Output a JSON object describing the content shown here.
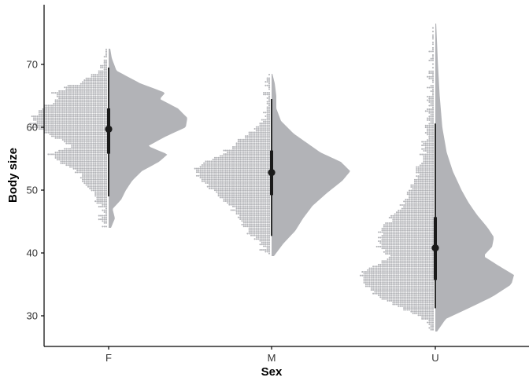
{
  "chart_data": {
    "type": "raincloud",
    "xlabel": "Sex",
    "ylabel": "Body size",
    "categories": [
      "F",
      "M",
      "U"
    ],
    "ylim": [
      27,
      77
    ],
    "y_ticks": [
      30,
      40,
      50,
      60,
      70
    ],
    "grid": false,
    "legend": "none",
    "colors": {
      "cloud": "#b2b3b7",
      "dots": "#b2b3b7",
      "interval": "#1a1a1a",
      "axis": "#000000"
    },
    "groups": [
      {
        "category": "F",
        "min": 44,
        "max": 72.5,
        "q05": 49,
        "q25": 55.8,
        "median": 59.7,
        "q75": 63,
        "q95": 69.5,
        "density": [
          [
            44,
            0.03
          ],
          [
            45.5,
            0.08
          ],
          [
            47,
            0.05
          ],
          [
            48.5,
            0.16
          ],
          [
            50,
            0.22
          ],
          [
            51.5,
            0.3
          ],
          [
            53,
            0.42
          ],
          [
            54.5,
            0.64
          ],
          [
            55.7,
            0.75
          ],
          [
            57,
            0.5
          ],
          [
            58.5,
            0.72
          ],
          [
            60,
            0.98
          ],
          [
            61.5,
            1.0
          ],
          [
            63,
            0.88
          ],
          [
            64.5,
            0.65
          ],
          [
            65.5,
            0.72
          ],
          [
            67,
            0.4
          ],
          [
            69,
            0.1
          ],
          [
            71,
            0.04
          ],
          [
            72.5,
            0.02
          ]
        ]
      },
      {
        "category": "M",
        "min": 39.5,
        "max": 68.5,
        "q05": 42.7,
        "q25": 49.2,
        "median": 52.8,
        "q75": 56.3,
        "q95": 64.5,
        "density": [
          [
            39.5,
            0.03
          ],
          [
            41.5,
            0.15
          ],
          [
            43.5,
            0.3
          ],
          [
            45.5,
            0.4
          ],
          [
            47.5,
            0.52
          ],
          [
            49.5,
            0.7
          ],
          [
            51.5,
            0.9
          ],
          [
            53,
            1.0
          ],
          [
            54.5,
            0.88
          ],
          [
            56,
            0.62
          ],
          [
            57.5,
            0.45
          ],
          [
            59,
            0.28
          ],
          [
            61,
            0.12
          ],
          [
            63,
            0.06
          ],
          [
            65,
            0.06
          ],
          [
            67,
            0.04
          ],
          [
            68.5,
            0.01
          ]
        ]
      },
      {
        "category": "U",
        "min": 27.5,
        "max": 76.5,
        "q05": 31.2,
        "q25": 35.7,
        "median": 40.8,
        "q75": 45.7,
        "q95": 60.6,
        "density": [
          [
            27.5,
            0.02
          ],
          [
            29.5,
            0.12
          ],
          [
            31,
            0.35
          ],
          [
            33,
            0.65
          ],
          [
            35,
            0.87
          ],
          [
            36.5,
            0.9
          ],
          [
            38,
            0.72
          ],
          [
            39.5,
            0.55
          ],
          [
            41,
            0.65
          ],
          [
            42.5,
            0.67
          ],
          [
            44,
            0.6
          ],
          [
            46,
            0.48
          ],
          [
            48,
            0.38
          ],
          [
            50,
            0.3
          ],
          [
            53,
            0.2
          ],
          [
            56,
            0.13
          ],
          [
            60,
            0.08
          ],
          [
            65,
            0.05
          ],
          [
            70,
            0.03
          ],
          [
            76.5,
            0.01
          ]
        ]
      }
    ]
  }
}
